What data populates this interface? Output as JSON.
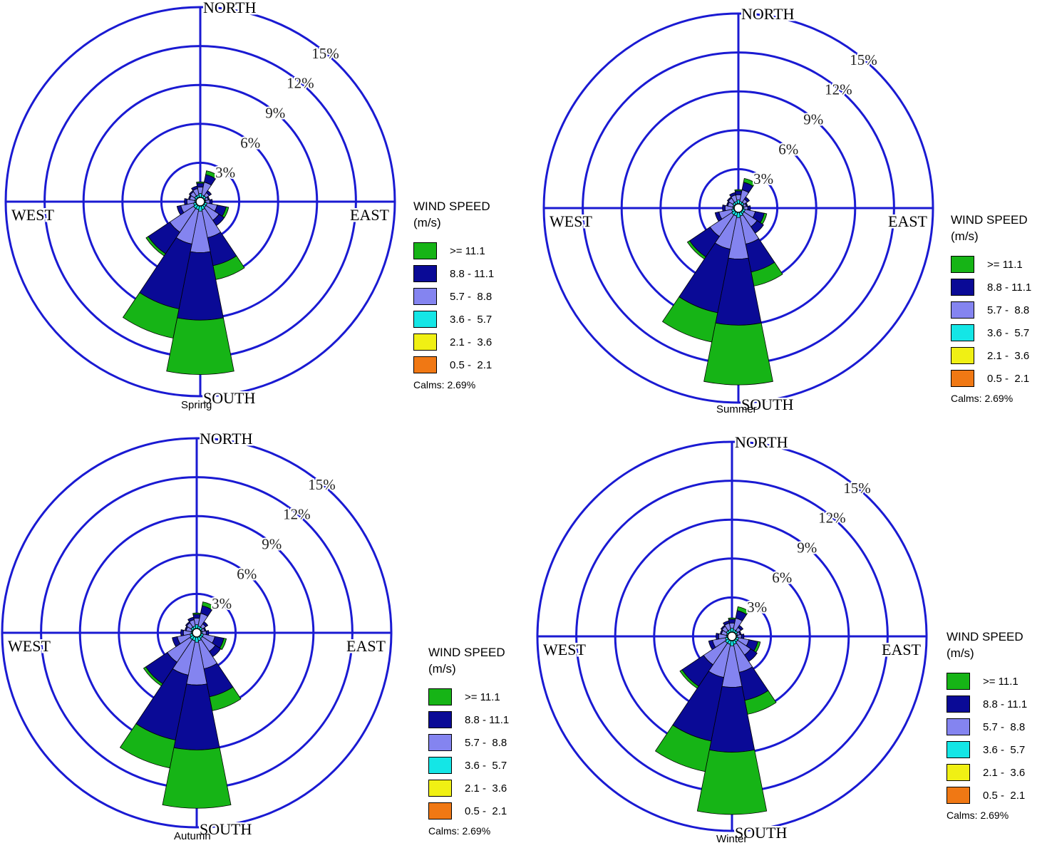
{
  "legend": {
    "title_line1": "WIND SPEED",
    "title_line2": "(m/s)",
    "items": [
      {
        "label": ">= 11.1",
        "color": "#16b416"
      },
      {
        "label": "8.8 - 11.1",
        "color": "#0a0a96"
      },
      {
        "label": "5.7 -  8.8",
        "color": "#8484f0"
      },
      {
        "label": "3.6 -  5.7",
        "color": "#14e6e6"
      },
      {
        "label": "2.1 -  3.6",
        "color": "#f0f014"
      },
      {
        "label": "0.5 -  2.1",
        "color": "#f07814"
      }
    ],
    "calms": "Calms: 2.69%"
  },
  "grid_color": "#1a1ad2",
  "chart_data": [
    {
      "type": "wind_rose",
      "title": "Spring",
      "direction_labels": {
        "north": "NORTH",
        "south": "SOUTH",
        "east": "EAST",
        "west": "WEST"
      },
      "ring_labels": [
        "3%",
        "6%",
        "9%",
        "12%",
        "15%"
      ],
      "rings_percent": [
        3,
        6,
        9,
        12,
        15
      ],
      "speed_bins": [
        ">= 11.1",
        "8.8 - 11.1",
        "5.7 -  8.8",
        "3.6 -  5.7",
        "2.1 -  3.6",
        "0.5 -  2.1"
      ],
      "calms_percent": 2.69,
      "directions": [
        {
          "dir": "N",
          "bins": {
            "0.5-2.1": 0,
            "2.1-3.6": 0,
            "3.6-5.7": 0.3,
            "5.7-8.8": 0.5,
            "8.8-11.1": 0.3,
            ">=11.1": 0.1
          }
        },
        {
          "dir": "NNE",
          "bins": {
            "0.5-2.1": 0,
            "2.1-3.6": 0,
            "3.6-5.7": 0.2,
            "5.7-8.8": 1.0,
            "8.8-11.1": 0.6,
            ">=11.1": 0.3
          }
        },
        {
          "dir": "NE",
          "bins": {
            "0.5-2.1": 0,
            "2.1-3.6": 0,
            "3.6-5.7": 0.2,
            "5.7-8.8": 0.3,
            "8.8-11.1": 0.2,
            ">=11.1": 0
          }
        },
        {
          "dir": "ENE",
          "bins": {
            "0.5-2.1": 0,
            "2.1-3.6": 0,
            "3.6-5.7": 0.1,
            "5.7-8.8": 0.2,
            "8.8-11.1": 0.1,
            ">=11.1": 0
          }
        },
        {
          "dir": "E",
          "bins": {
            "0.5-2.1": 0,
            "2.1-3.6": 0,
            "3.6-5.7": 0.1,
            "5.7-8.8": 0.3,
            "8.8-11.1": 0.2,
            ">=11.1": 0
          }
        },
        {
          "dir": "ESE",
          "bins": {
            "0.5-2.1": 0,
            "2.1-3.6": 0,
            "3.6-5.7": 0.2,
            "5.7-8.8": 0.8,
            "8.8-11.1": 0.7,
            ">=11.1": 0.2
          }
        },
        {
          "dir": "SE",
          "bins": {
            "0.5-2.1": 0,
            "2.1-3.6": 0,
            "3.6-5.7": 0.2,
            "5.7-8.8": 1.2,
            "8.8-11.1": 0.5,
            ">=11.1": 0
          }
        },
        {
          "dir": "SSE",
          "bins": {
            "0.5-2.1": 0,
            "2.1-3.6": 0,
            "3.6-5.7": 0.3,
            "5.7-8.8": 2.2,
            "8.8-11.1": 2.2,
            ">=11.1": 1.1
          }
        },
        {
          "dir": "S",
          "bins": {
            "0.5-2.1": 0,
            "2.1-3.6": 0,
            "3.6-5.7": 0.4,
            "5.7-8.8": 3.2,
            "8.8-11.1": 5.2,
            ">=11.1": 4.2
          }
        },
        {
          "dir": "SSW",
          "bins": {
            "0.5-2.1": 0,
            "2.1-3.6": 0,
            "3.6-5.7": 0.3,
            "5.7-8.8": 2.7,
            "8.8-11.1": 5.1,
            ">=11.1": 2.3
          }
        },
        {
          "dir": "SW",
          "bins": {
            "0.5-2.1": 0,
            "2.1-3.6": 0,
            "3.6-5.7": 0.3,
            "5.7-8.8": 2.2,
            "8.8-11.1": 2.0,
            ">=11.1": 0.2
          }
        },
        {
          "dir": "WSW",
          "bins": {
            "0.5-2.1": 0,
            "2.1-3.6": 0,
            "3.6-5.7": 0.2,
            "5.7-8.8": 1.0,
            "8.8-11.1": 0.3,
            ">=11.1": 0
          }
        },
        {
          "dir": "W",
          "bins": {
            "0.5-2.1": 0,
            "2.1-3.6": 0,
            "3.6-5.7": 0.1,
            "5.7-8.8": 0.6,
            "8.8-11.1": 0.2,
            ">=11.1": 0
          }
        },
        {
          "dir": "WNW",
          "bins": {
            "0.5-2.1": 0,
            "2.1-3.6": 0,
            "3.6-5.7": 0.1,
            "5.7-8.8": 0.4,
            "8.8-11.1": 0.1,
            ">=11.1": 0
          }
        },
        {
          "dir": "NW",
          "bins": {
            "0.5-2.1": 0,
            "2.1-3.6": 0,
            "3.6-5.7": 0.2,
            "5.7-8.8": 0.4,
            "8.8-11.1": 0.1,
            ">=11.1": 0
          }
        },
        {
          "dir": "NNW",
          "bins": {
            "0.5-2.1": 0,
            "2.1-3.6": 0,
            "3.6-5.7": 0.2,
            "5.7-8.8": 0.5,
            "8.8-11.1": 0.2,
            ">=11.1": 0
          }
        }
      ]
    },
    {
      "type": "wind_rose",
      "title": "Summer",
      "direction_labels": {
        "north": "NORTH",
        "south": "SOUTH",
        "east": "EAST",
        "west": "WEST"
      },
      "ring_labels": [
        "3%",
        "6%",
        "9%",
        "12%",
        "15%"
      ],
      "rings_percent": [
        3,
        6,
        9,
        12,
        15
      ],
      "speed_bins": [
        ">= 11.1",
        "8.8 - 11.1",
        "5.7 -  8.8",
        "3.6 -  5.7",
        "2.1 -  3.6",
        "0.5 -  2.1"
      ],
      "calms_percent": 2.69,
      "directions": [
        {
          "dir": "N",
          "bins": {
            "0.5-2.1": 0,
            "2.1-3.6": 0,
            "3.6-5.7": 0.3,
            "5.7-8.8": 0.4,
            "8.8-11.1": 0.3,
            ">=11.1": 0.1
          }
        },
        {
          "dir": "NNE",
          "bins": {
            "0.5-2.1": 0,
            "2.1-3.6": 0,
            "3.6-5.7": 0.2,
            "5.7-8.8": 0.9,
            "8.8-11.1": 0.6,
            ">=11.1": 0.3
          }
        },
        {
          "dir": "NE",
          "bins": {
            "0.5-2.1": 0,
            "2.1-3.6": 0,
            "3.6-5.7": 0.2,
            "5.7-8.8": 0.3,
            "8.8-11.1": 0.2,
            ">=11.1": 0
          }
        },
        {
          "dir": "ENE",
          "bins": {
            "0.5-2.1": 0,
            "2.1-3.6": 0,
            "3.6-5.7": 0.1,
            "5.7-8.8": 0.2,
            "8.8-11.1": 0.1,
            ">=11.1": 0
          }
        },
        {
          "dir": "E",
          "bins": {
            "0.5-2.1": 0,
            "2.1-3.6": 0,
            "3.6-5.7": 0.1,
            "5.7-8.8": 0.3,
            "8.8-11.1": 0.2,
            ">=11.1": 0
          }
        },
        {
          "dir": "ESE",
          "bins": {
            "0.5-2.1": 0,
            "2.1-3.6": 0,
            "3.6-5.7": 0.2,
            "5.7-8.8": 0.8,
            "8.8-11.1": 0.7,
            ">=11.1": 0.2
          }
        },
        {
          "dir": "SE",
          "bins": {
            "0.5-2.1": 0,
            "2.1-3.6": 0,
            "3.6-5.7": 0.2,
            "5.7-8.8": 1.2,
            "8.8-11.1": 0.6,
            ">=11.1": 0
          }
        },
        {
          "dir": "SSE",
          "bins": {
            "0.5-2.1": 0,
            "2.1-3.6": 0,
            "3.6-5.7": 0.3,
            "5.7-8.8": 2.2,
            "8.8-11.1": 2.2,
            ">=11.1": 1.1
          }
        },
        {
          "dir": "S",
          "bins": {
            "0.5-2.1": 0,
            "2.1-3.6": 0,
            "3.6-5.7": 0.4,
            "5.7-8.8": 3.2,
            "8.8-11.1": 5.1,
            ">=11.1": 4.6
          }
        },
        {
          "dir": "SSW",
          "bins": {
            "0.5-2.1": 0,
            "2.1-3.6": 0,
            "3.6-5.7": 0.3,
            "5.7-8.8": 2.6,
            "8.8-11.1": 5.0,
            ">=11.1": 2.3
          }
        },
        {
          "dir": "SW",
          "bins": {
            "0.5-2.1": 0,
            "2.1-3.6": 0,
            "3.6-5.7": 0.3,
            "5.7-8.8": 2.0,
            "8.8-11.1": 1.9,
            ">=11.1": 0.2
          }
        },
        {
          "dir": "WSW",
          "bins": {
            "0.5-2.1": 0,
            "2.1-3.6": 0,
            "3.6-5.7": 0.2,
            "5.7-8.8": 1.0,
            "8.8-11.1": 0.3,
            ">=11.1": 0
          }
        },
        {
          "dir": "W",
          "bins": {
            "0.5-2.1": 0,
            "2.1-3.6": 0,
            "3.6-5.7": 0.1,
            "5.7-8.8": 0.6,
            "8.8-11.1": 0.2,
            ">=11.1": 0
          }
        },
        {
          "dir": "WNW",
          "bins": {
            "0.5-2.1": 0,
            "2.1-3.6": 0,
            "3.6-5.7": 0.1,
            "5.7-8.8": 0.4,
            "8.8-11.1": 0.1,
            ">=11.1": 0
          }
        },
        {
          "dir": "NW",
          "bins": {
            "0.5-2.1": 0,
            "2.1-3.6": 0,
            "3.6-5.7": 0.2,
            "5.7-8.8": 0.4,
            "8.8-11.1": 0.1,
            ">=11.1": 0
          }
        },
        {
          "dir": "NNW",
          "bins": {
            "0.5-2.1": 0,
            "2.1-3.6": 0,
            "3.6-5.7": 0.2,
            "5.7-8.8": 0.5,
            "8.8-11.1": 0.2,
            ">=11.1": 0
          }
        }
      ]
    },
    {
      "type": "wind_rose",
      "title": "Autumn",
      "direction_labels": {
        "north": "NORTH",
        "south": "SOUTH",
        "east": "EAST",
        "west": "WEST"
      },
      "ring_labels": [
        "3%",
        "6%",
        "9%",
        "12%",
        "15%"
      ],
      "rings_percent": [
        3,
        6,
        9,
        12,
        15
      ],
      "speed_bins": [
        ">= 11.1",
        "8.8 - 11.1",
        "5.7 -  8.8",
        "3.6 -  5.7",
        "2.1 -  3.6",
        "0.5 -  2.1"
      ],
      "calms_percent": 2.69,
      "directions": [
        {
          "dir": "N",
          "bins": {
            "0.5-2.1": 0,
            "2.1-3.6": 0,
            "3.6-5.7": 0.3,
            "5.7-8.8": 0.5,
            "8.8-11.1": 0.3,
            ">=11.1": 0.1
          }
        },
        {
          "dir": "NNE",
          "bins": {
            "0.5-2.1": 0,
            "2.1-3.6": 0,
            "3.6-5.7": 0.2,
            "5.7-8.8": 1.0,
            "8.8-11.1": 0.6,
            ">=11.1": 0.3
          }
        },
        {
          "dir": "NE",
          "bins": {
            "0.5-2.1": 0,
            "2.1-3.6": 0,
            "3.6-5.7": 0.2,
            "5.7-8.8": 0.3,
            "8.8-11.1": 0.2,
            ">=11.1": 0
          }
        },
        {
          "dir": "ENE",
          "bins": {
            "0.5-2.1": 0,
            "2.1-3.6": 0,
            "3.6-5.7": 0.1,
            "5.7-8.8": 0.2,
            "8.8-11.1": 0.1,
            ">=11.1": 0
          }
        },
        {
          "dir": "E",
          "bins": {
            "0.5-2.1": 0,
            "2.1-3.6": 0,
            "3.6-5.7": 0.1,
            "5.7-8.8": 0.3,
            "8.8-11.1": 0.2,
            ">=11.1": 0
          }
        },
        {
          "dir": "ESE",
          "bins": {
            "0.5-2.1": 0,
            "2.1-3.6": 0,
            "3.6-5.7": 0.2,
            "5.7-8.8": 0.9,
            "8.8-11.1": 0.7,
            ">=11.1": 0.2
          }
        },
        {
          "dir": "SE",
          "bins": {
            "0.5-2.1": 0,
            "2.1-3.6": 0,
            "3.6-5.7": 0.2,
            "5.7-8.8": 1.2,
            "8.8-11.1": 0.5,
            ">=11.1": 0
          }
        },
        {
          "dir": "SSE",
          "bins": {
            "0.5-2.1": 0,
            "2.1-3.6": 0,
            "3.6-5.7": 0.3,
            "5.7-8.8": 2.2,
            "8.8-11.1": 2.2,
            ">=11.1": 1.1
          }
        },
        {
          "dir": "S",
          "bins": {
            "0.5-2.1": 0,
            "2.1-3.6": 0,
            "3.6-5.7": 0.4,
            "5.7-8.8": 3.3,
            "8.8-11.1": 5.0,
            ">=11.1": 4.5
          }
        },
        {
          "dir": "SSW",
          "bins": {
            "0.5-2.1": 0,
            "2.1-3.6": 0,
            "3.6-5.7": 0.3,
            "5.7-8.8": 2.7,
            "8.8-11.1": 5.1,
            ">=11.1": 2.2
          }
        },
        {
          "dir": "SW",
          "bins": {
            "0.5-2.1": 0,
            "2.1-3.6": 0,
            "3.6-5.7": 0.3,
            "5.7-8.8": 2.1,
            "8.8-11.1": 2.0,
            ">=11.1": 0.2
          }
        },
        {
          "dir": "WSW",
          "bins": {
            "0.5-2.1": 0,
            "2.1-3.6": 0,
            "3.6-5.7": 0.2,
            "5.7-8.8": 1.0,
            "8.8-11.1": 0.4,
            ">=11.1": 0
          }
        },
        {
          "dir": "W",
          "bins": {
            "0.5-2.1": 0,
            "2.1-3.6": 0,
            "3.6-5.7": 0.1,
            "5.7-8.8": 0.6,
            "8.8-11.1": 0.2,
            ">=11.1": 0
          }
        },
        {
          "dir": "WNW",
          "bins": {
            "0.5-2.1": 0,
            "2.1-3.6": 0,
            "3.6-5.7": 0.1,
            "5.7-8.8": 0.4,
            "8.8-11.1": 0.1,
            ">=11.1": 0
          }
        },
        {
          "dir": "NW",
          "bins": {
            "0.5-2.1": 0,
            "2.1-3.6": 0,
            "3.6-5.7": 0.2,
            "5.7-8.8": 0.4,
            "8.8-11.1": 0.1,
            ">=11.1": 0
          }
        },
        {
          "dir": "NNW",
          "bins": {
            "0.5-2.1": 0,
            "2.1-3.6": 0,
            "3.6-5.7": 0.2,
            "5.7-8.8": 0.5,
            "8.8-11.1": 0.2,
            ">=11.1": 0
          }
        }
      ]
    },
    {
      "type": "wind_rose",
      "title": "Winter",
      "direction_labels": {
        "north": "NORTH",
        "south": "SOUTH",
        "east": "EAST",
        "west": "WEST"
      },
      "ring_labels": [
        "3%",
        "6%",
        "9%",
        "12%",
        "15%"
      ],
      "rings_percent": [
        3,
        6,
        9,
        12,
        15
      ],
      "speed_bins": [
        ">= 11.1",
        "8.8 - 11.1",
        "5.7 -  8.8",
        "3.6 -  5.7",
        "2.1 -  3.6",
        "0.5 -  2.1"
      ],
      "calms_percent": 2.69,
      "directions": [
        {
          "dir": "N",
          "bins": {
            "0.5-2.1": 0,
            "2.1-3.6": 0,
            "3.6-5.7": 0.3,
            "5.7-8.8": 0.4,
            "8.8-11.1": 0.3,
            ">=11.1": 0.1
          }
        },
        {
          "dir": "NNE",
          "bins": {
            "0.5-2.1": 0,
            "2.1-3.6": 0,
            "3.6-5.7": 0.2,
            "5.7-8.8": 0.9,
            "8.8-11.1": 0.6,
            ">=11.1": 0.3
          }
        },
        {
          "dir": "NE",
          "bins": {
            "0.5-2.1": 0,
            "2.1-3.6": 0,
            "3.6-5.7": 0.2,
            "5.7-8.8": 0.3,
            "8.8-11.1": 0.2,
            ">=11.1": 0
          }
        },
        {
          "dir": "ENE",
          "bins": {
            "0.5-2.1": 0,
            "2.1-3.6": 0,
            "3.6-5.7": 0.1,
            "5.7-8.8": 0.2,
            "8.8-11.1": 0.1,
            ">=11.1": 0
          }
        },
        {
          "dir": "E",
          "bins": {
            "0.5-2.1": 0,
            "2.1-3.6": 0,
            "3.6-5.7": 0.1,
            "5.7-8.8": 0.3,
            "8.8-11.1": 0.2,
            ">=11.1": 0
          }
        },
        {
          "dir": "ESE",
          "bins": {
            "0.5-2.1": 0,
            "2.1-3.6": 0,
            "3.6-5.7": 0.2,
            "5.7-8.8": 0.8,
            "8.8-11.1": 0.7,
            ">=11.1": 0.2
          }
        },
        {
          "dir": "SE",
          "bins": {
            "0.5-2.1": 0,
            "2.1-3.6": 0,
            "3.6-5.7": 0.2,
            "5.7-8.8": 1.2,
            "8.8-11.1": 0.6,
            ">=11.1": 0
          }
        },
        {
          "dir": "SSE",
          "bins": {
            "0.5-2.1": 0,
            "2.1-3.6": 0,
            "3.6-5.7": 0.3,
            "5.7-8.8": 2.2,
            "8.8-11.1": 2.2,
            ">=11.1": 1.1
          }
        },
        {
          "dir": "S",
          "bins": {
            "0.5-2.1": 0,
            "2.1-3.6": 0,
            "3.6-5.7": 0.4,
            "5.7-8.8": 3.2,
            "8.8-11.1": 5.0,
            ">=11.1": 4.8
          }
        },
        {
          "dir": "SSW",
          "bins": {
            "0.5-2.1": 0,
            "2.1-3.6": 0,
            "3.6-5.7": 0.3,
            "5.7-8.8": 2.6,
            "8.8-11.1": 5.0,
            ">=11.1": 2.4
          }
        },
        {
          "dir": "SW",
          "bins": {
            "0.5-2.1": 0,
            "2.1-3.6": 0,
            "3.6-5.7": 0.3,
            "5.7-8.8": 2.0,
            "8.8-11.1": 2.0,
            ">=11.1": 0.2
          }
        },
        {
          "dir": "WSW",
          "bins": {
            "0.5-2.1": 0,
            "2.1-3.6": 0,
            "3.6-5.7": 0.2,
            "5.7-8.8": 1.0,
            "8.8-11.1": 0.3,
            ">=11.1": 0
          }
        },
        {
          "dir": "W",
          "bins": {
            "0.5-2.1": 0,
            "2.1-3.6": 0,
            "3.6-5.7": 0.1,
            "5.7-8.8": 0.6,
            "8.8-11.1": 0.2,
            ">=11.1": 0
          }
        },
        {
          "dir": "WNW",
          "bins": {
            "0.5-2.1": 0,
            "2.1-3.6": 0,
            "3.6-5.7": 0.1,
            "5.7-8.8": 0.4,
            "8.8-11.1": 0.1,
            ">=11.1": 0
          }
        },
        {
          "dir": "NW",
          "bins": {
            "0.5-2.1": 0,
            "2.1-3.6": 0,
            "3.6-5.7": 0.2,
            "5.7-8.8": 0.4,
            "8.8-11.1": 0.1,
            ">=11.1": 0
          }
        },
        {
          "dir": "NNW",
          "bins": {
            "0.5-2.1": 0,
            "2.1-3.6": 0,
            "3.6-5.7": 0.2,
            "5.7-8.8": 0.5,
            "8.8-11.1": 0.2,
            ">=11.1": 0
          }
        }
      ]
    }
  ]
}
